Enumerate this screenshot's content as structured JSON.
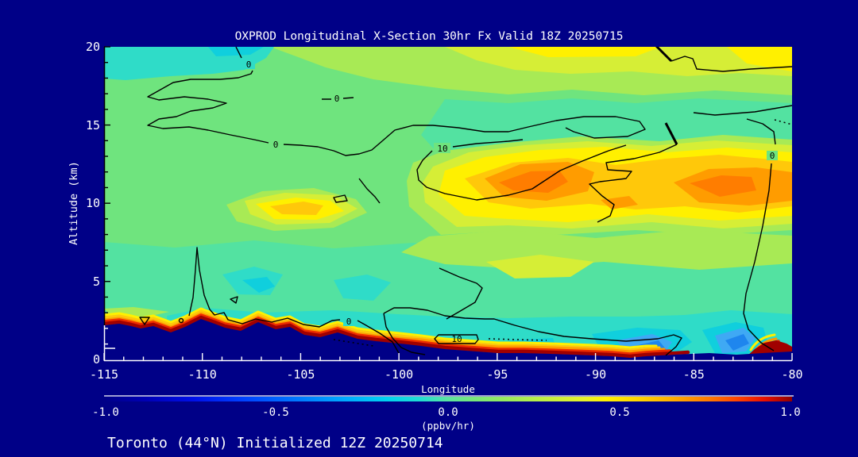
{
  "title": "OXPROD Longitudinal X-Section 30hr  Fx Valid 18Z 20250715",
  "footer": "Toronto (44°N) Initialized 12Z 20250714",
  "y_axis": {
    "label": "Altitude (km)",
    "ticks": [
      "20",
      "15",
      "10",
      "5",
      "0"
    ]
  },
  "x_axis": {
    "label": "Longitude",
    "ticks": [
      "-115",
      "-110",
      "-105",
      "-100",
      "-95",
      "-90",
      "-85",
      "-80"
    ]
  },
  "colorbar": {
    "ticks": [
      "-1.0",
      "-0.5",
      "0.0",
      "0.5",
      "1.0"
    ],
    "units_label": "(ppbv/hr)"
  },
  "contour_labels": [
    "0",
    "0",
    "0",
    "10",
    "0",
    "10",
    "0"
  ],
  "colors": {
    "background": "#000087",
    "text": "#ffffff",
    "contour_line": "#000000",
    "fill_green": "#6FE47E",
    "fill_teal": "#53E2A1",
    "fill_cyan": "#2FDCC8",
    "fill_bright_cyan": "#10CFDD",
    "fill_light_blue": "#3FA9F4",
    "fill_blue": "#1E86EE",
    "fill_yellow_green": "#A8EA55",
    "fill_lime": "#D6EE36",
    "fill_yellow": "#FFF000",
    "fill_yellow_orange": "#FFC80A",
    "fill_orange": "#FF9C00",
    "fill_deep_orange": "#FF7D00",
    "fill_red": "#EE2C00",
    "fill_dark_red": "#A00000"
  },
  "chart_data": {
    "type": "filled_contour_cross_section",
    "title": "OXPROD Longitudinal X-Section 30hr  Fx Valid 18Z 20250715",
    "initialization": "Toronto (44°N) Initialized 12Z 20250714",
    "variable_units": "ppbv/hr",
    "x": {
      "label": "Longitude",
      "min": -115,
      "max": -80,
      "tick_step": 5,
      "minor_tick_step": 1
    },
    "y": {
      "label": "Altitude (km)",
      "min": 0,
      "max": 20,
      "tick_step": 5,
      "minor_tick_step": 1
    },
    "colorbar": {
      "min": -1.0,
      "max": 1.0,
      "ticks": [
        -1.0,
        -0.5,
        0.0,
        0.5,
        1.0
      ],
      "units": "(ppbv/hr)",
      "palette": "rainbow: dark navy -> blue -> cyan -> teal-green -> green -> yellow-green -> yellow -> orange -> red -> dark red"
    },
    "contour_line_labels": [
      0,
      10
    ],
    "grid": false,
    "terrain_profile": {
      "longitudes": [
        -115,
        -113,
        -110,
        -108,
        -107,
        -105,
        -103,
        -101,
        -99,
        -96,
        -93.5,
        -90,
        -87,
        -85,
        -82.5,
        -80
      ],
      "elevation_km": [
        2.2,
        2.0,
        2.6,
        2.0,
        2.4,
        1.8,
        1.7,
        1.2,
        0.85,
        0.5,
        0.4,
        0.27,
        0.2,
        0.35,
        0.3,
        0.5
      ]
    },
    "estimated_field_ppbv_hr": {
      "note": "values estimated from fill colors; null = below terrain",
      "longitudes": [
        -115,
        -110,
        -105,
        -100,
        -95,
        -90,
        -85,
        -80
      ],
      "altitudes_km": [
        1,
        3,
        5,
        8,
        10,
        12,
        15,
        18
      ],
      "values": [
        [
          null,
          null,
          0.9,
          0.7,
          0.85,
          0.9,
          -0.35,
          1.0
        ],
        [
          -0.1,
          -0.15,
          -0.2,
          -0.15,
          -0.1,
          -0.1,
          -0.25,
          -0.1
        ],
        [
          0.0,
          -0.05,
          0.0,
          0.05,
          0.1,
          0.15,
          0.05,
          0.0
        ],
        [
          0.05,
          0.0,
          0.1,
          0.15,
          0.3,
          0.3,
          0.2,
          0.15
        ],
        [
          0.1,
          0.1,
          0.35,
          0.3,
          0.5,
          0.4,
          0.5,
          0.45
        ],
        [
          0.05,
          0.1,
          0.15,
          0.25,
          0.6,
          0.45,
          0.55,
          0.6
        ],
        [
          0.05,
          0.05,
          0.1,
          0.1,
          0.2,
          0.25,
          0.15,
          0.1
        ],
        [
          -0.15,
          -0.1,
          0.0,
          0.1,
          0.3,
          0.35,
          0.3,
          0.35
        ]
      ]
    },
    "features": [
      "Cyan/turquoise band aloft in the upper-left (16-20 km, west of -102)",
      "Broad positive production layer (yellow/orange, ~0.4-0.7 ppbv/hr) at 9-13 km between -98 and -80 with orange cores near -95.5 and -85.5",
      "Smaller local maximum (~0.5 ppbv/hr) near -106 at ~9.5 km",
      "Thin strong positive layer (red/dark red, 0.8-1.0 ppbv/hr) hugging the terrain surface across the whole domain",
      "Shallow negative layer (cyan/blue, -0.3 to -0.5 ppbv/hr) at 0.5-3 km, strongest near -86.5 and -90.5",
      "Mountainous terrain up to ~2.6 km west of -102, low terrain east of -97",
      "Dark-red near-surface maximum at the eastern edge near -80.5"
    ]
  }
}
